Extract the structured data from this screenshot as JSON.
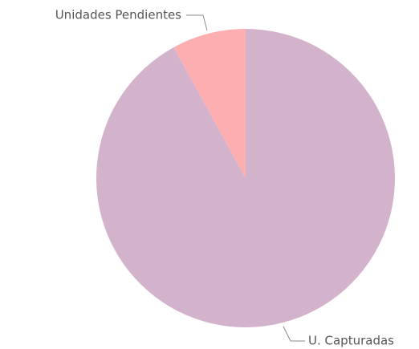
{
  "chart_data": {
    "type": "pie",
    "categories": [
      "U. Capturadas",
      "Unidades Pendientes"
    ],
    "values": [
      92,
      8
    ],
    "colors": [
      "#d3b2cc",
      "#fdaeb0"
    ]
  }
}
